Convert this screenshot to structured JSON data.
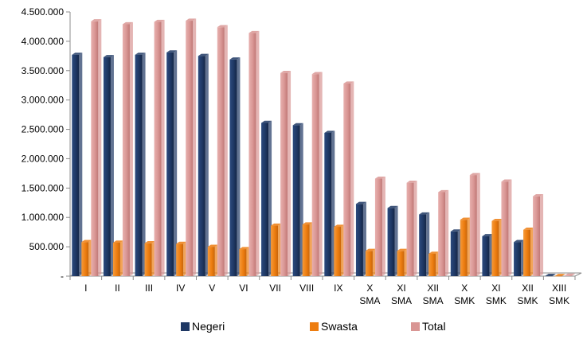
{
  "chart_data": {
    "type": "bar",
    "categories": [
      [
        "I"
      ],
      [
        "II"
      ],
      [
        "III"
      ],
      [
        "IV"
      ],
      [
        "V"
      ],
      [
        "VI"
      ],
      [
        "VII"
      ],
      [
        "VIII"
      ],
      [
        "IX"
      ],
      [
        "X",
        "SMA"
      ],
      [
        "XI",
        "SMA"
      ],
      [
        "XII",
        "SMA"
      ],
      [
        "X",
        "SMK"
      ],
      [
        "XI",
        "SMK"
      ],
      [
        "XII",
        "SMK"
      ],
      [
        "XIII",
        "SMK"
      ]
    ],
    "y_ticks": [
      "-",
      "500.000",
      "1.000.000",
      "1.500.000",
      "2.000.000",
      "2.500.000",
      "3.000.000",
      "3.500.000",
      "4.000.000",
      "4.500.000"
    ],
    "ylim": [
      0,
      4500000
    ],
    "grid": false,
    "legend_position": "bottom",
    "series": [
      {
        "name": "Negeri",
        "color": "#1f3864",
        "values": [
          3770000,
          3730000,
          3770000,
          3810000,
          3750000,
          3690000,
          2610000,
          2570000,
          2440000,
          1230000,
          1160000,
          1050000,
          760000,
          680000,
          580000,
          5000
        ]
      },
      {
        "name": "Swasta",
        "color": "#ed7d10",
        "values": [
          580000,
          570000,
          560000,
          550000,
          500000,
          460000,
          860000,
          880000,
          840000,
          430000,
          430000,
          380000,
          960000,
          940000,
          790000,
          3000
        ]
      },
      {
        "name": "Total",
        "color": "#d99694",
        "values": [
          4340000,
          4290000,
          4330000,
          4350000,
          4240000,
          4140000,
          3460000,
          3440000,
          3280000,
          1660000,
          1590000,
          1430000,
          1720000,
          1610000,
          1360000,
          8000
        ]
      }
    ]
  }
}
